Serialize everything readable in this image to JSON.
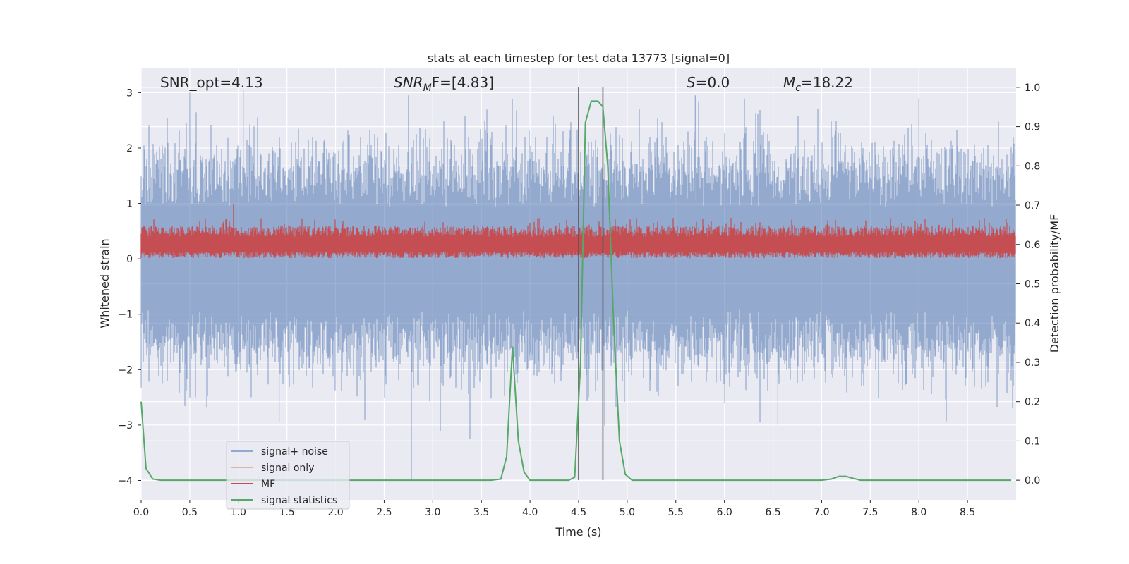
{
  "chart_data": {
    "type": "line",
    "title": "stats at each timestep for test data 13773 [signal=0]",
    "annotations": {
      "snr_opt": "SNR_opt=4.13",
      "snr_mf_main": "SNR",
      "snr_mf_sub": "M",
      "snr_mf_rest": "F=[4.83]",
      "s_main": "S",
      "s_rest": "=0.0",
      "mc_main": "M",
      "mc_sub": "c",
      "mc_rest": "=18.22"
    },
    "xlabel": "Time (s)",
    "ylabel_left": "Whitened strain",
    "ylabel_right": "Detection probability/MF",
    "xlim": [
      0,
      9
    ],
    "ylim_left": [
      -4.35,
      3.45
    ],
    "ylim_right": [
      -0.05,
      1.05
    ],
    "x_ticks": [
      "0.0",
      "0.5",
      "1.0",
      "1.5",
      "2.0",
      "2.5",
      "3.0",
      "3.5",
      "4.0",
      "4.5",
      "5.0",
      "5.5",
      "6.0",
      "6.5",
      "7.0",
      "7.5",
      "8.0",
      "8.5"
    ],
    "y_ticks_left": [
      "3",
      "2",
      "1",
      "0",
      "−1",
      "−2",
      "−3",
      "−4"
    ],
    "y_ticks_right": [
      "1.0",
      "0.9",
      "0.8",
      "0.7",
      "0.6",
      "0.5",
      "0.4",
      "0.3",
      "0.2",
      "0.1",
      "0.0"
    ],
    "grid": true,
    "legend_position": "lower-left",
    "legend": [
      "signal+ noise",
      "signal only",
      "MF",
      "signal statistics"
    ],
    "colors": {
      "signal_noise": "#4c72b0",
      "signal_only": "#dd8452",
      "mf": "#c44e52",
      "signal_statistics": "#55a868",
      "vlines": "#555555",
      "axes_bg": "#eaeaf2"
    },
    "signal_noise_envelope": {
      "approx_range": [
        -2.2,
        2.2
      ],
      "max_peak": 3.0,
      "min_trough": -4.0
    },
    "mf_envelope": {
      "approx_range": [
        0.0,
        0.6
      ],
      "max_peak": 0.98
    },
    "vertical_lines_x": [
      4.5,
      4.75
    ],
    "signal_statistics": {
      "x": [
        0.0,
        0.05,
        0.12,
        0.2,
        1.0,
        2.0,
        3.0,
        3.6,
        3.7,
        3.76,
        3.82,
        3.88,
        3.94,
        4.0,
        4.4,
        4.46,
        4.52,
        4.57,
        4.63,
        4.7,
        4.75,
        4.8,
        4.86,
        4.92,
        4.98,
        5.05,
        6.0,
        7.0,
        7.1,
        7.18,
        7.25,
        7.32,
        7.4,
        7.48,
        8.0,
        8.95
      ],
      "y": [
        0.2,
        0.03,
        0.003,
        0.0,
        0.0,
        0.0,
        0.0,
        0.0,
        0.003,
        0.06,
        0.34,
        0.1,
        0.02,
        0.0,
        0.0,
        0.008,
        0.3,
        0.91,
        0.965,
        0.965,
        0.95,
        0.8,
        0.4,
        0.1,
        0.015,
        0.0,
        0.0,
        0.0,
        0.003,
        0.01,
        0.01,
        0.005,
        0.0,
        0.0,
        0.0,
        0.0
      ]
    }
  }
}
